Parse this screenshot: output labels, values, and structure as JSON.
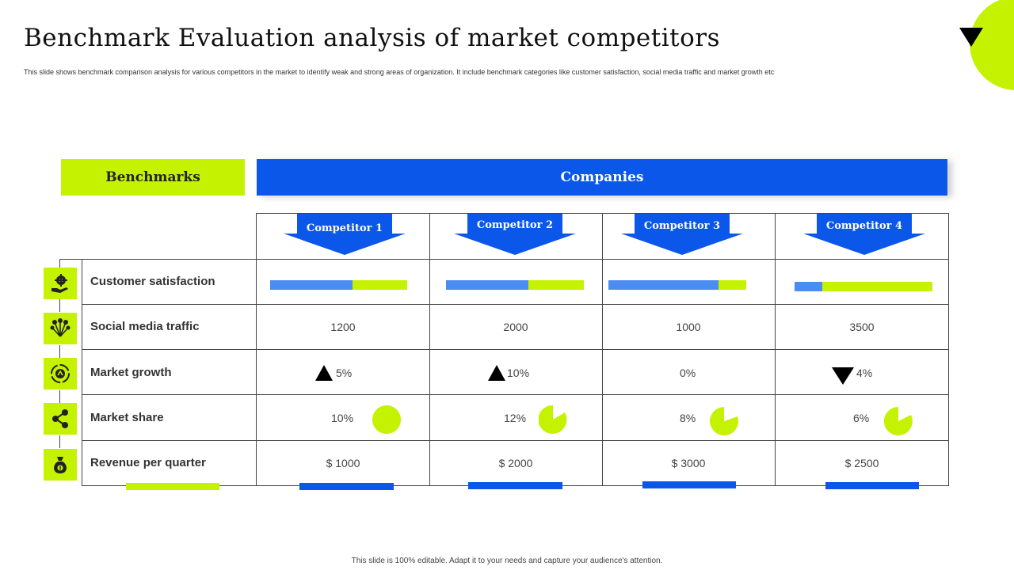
{
  "header": {
    "title": "Benchmark Evaluation analysis of market competitors",
    "subtitle": "This slide shows benchmark comparison analysis for various competitors in the market to identify weak and strong areas of organization. It include benchmark categories like customer satisfaction, social media traffic and market growth etc"
  },
  "table": {
    "benchmarks_header": "Benchmarks",
    "companies_header": "Companies",
    "competitors": [
      "Competitor 1",
      "Competitor 2",
      "Competitor 3",
      "Competitor 4"
    ],
    "rows": [
      {
        "label": "Customer satisfaction",
        "icon": "hand-gear-icon"
      },
      {
        "label": "Social media traffic",
        "icon": "network-nodes-icon"
      },
      {
        "label": "Market growth",
        "icon": "growth-cycle-icon"
      },
      {
        "label": "Market share",
        "icon": "share-icon"
      },
      {
        "label": "Revenue per quarter",
        "icon": "money-bag-icon"
      }
    ],
    "customer_satisfaction": [
      0.6,
      0.6,
      0.8,
      0.2
    ],
    "social_media_traffic": [
      "1200",
      "2000",
      "1000",
      "3500"
    ],
    "market_growth": [
      {
        "text": "5%",
        "direction": "up"
      },
      {
        "text": "10%",
        "direction": "up"
      },
      {
        "text": "0%",
        "direction": "none"
      },
      {
        "text": "4%",
        "direction": "down"
      }
    ],
    "market_share": [
      "10%",
      "12%",
      "8%",
      "6%"
    ],
    "revenue": [
      "$ 1000",
      "$ 2000",
      "$ 3000",
      "$ 2500"
    ]
  },
  "colors": {
    "accent_green": "#c5f200",
    "accent_blue": "#0a57ea",
    "bar_blue": "#4a8df0"
  },
  "footer": "This slide is 100% editable. Adapt it to your needs and capture your audience's attention."
}
